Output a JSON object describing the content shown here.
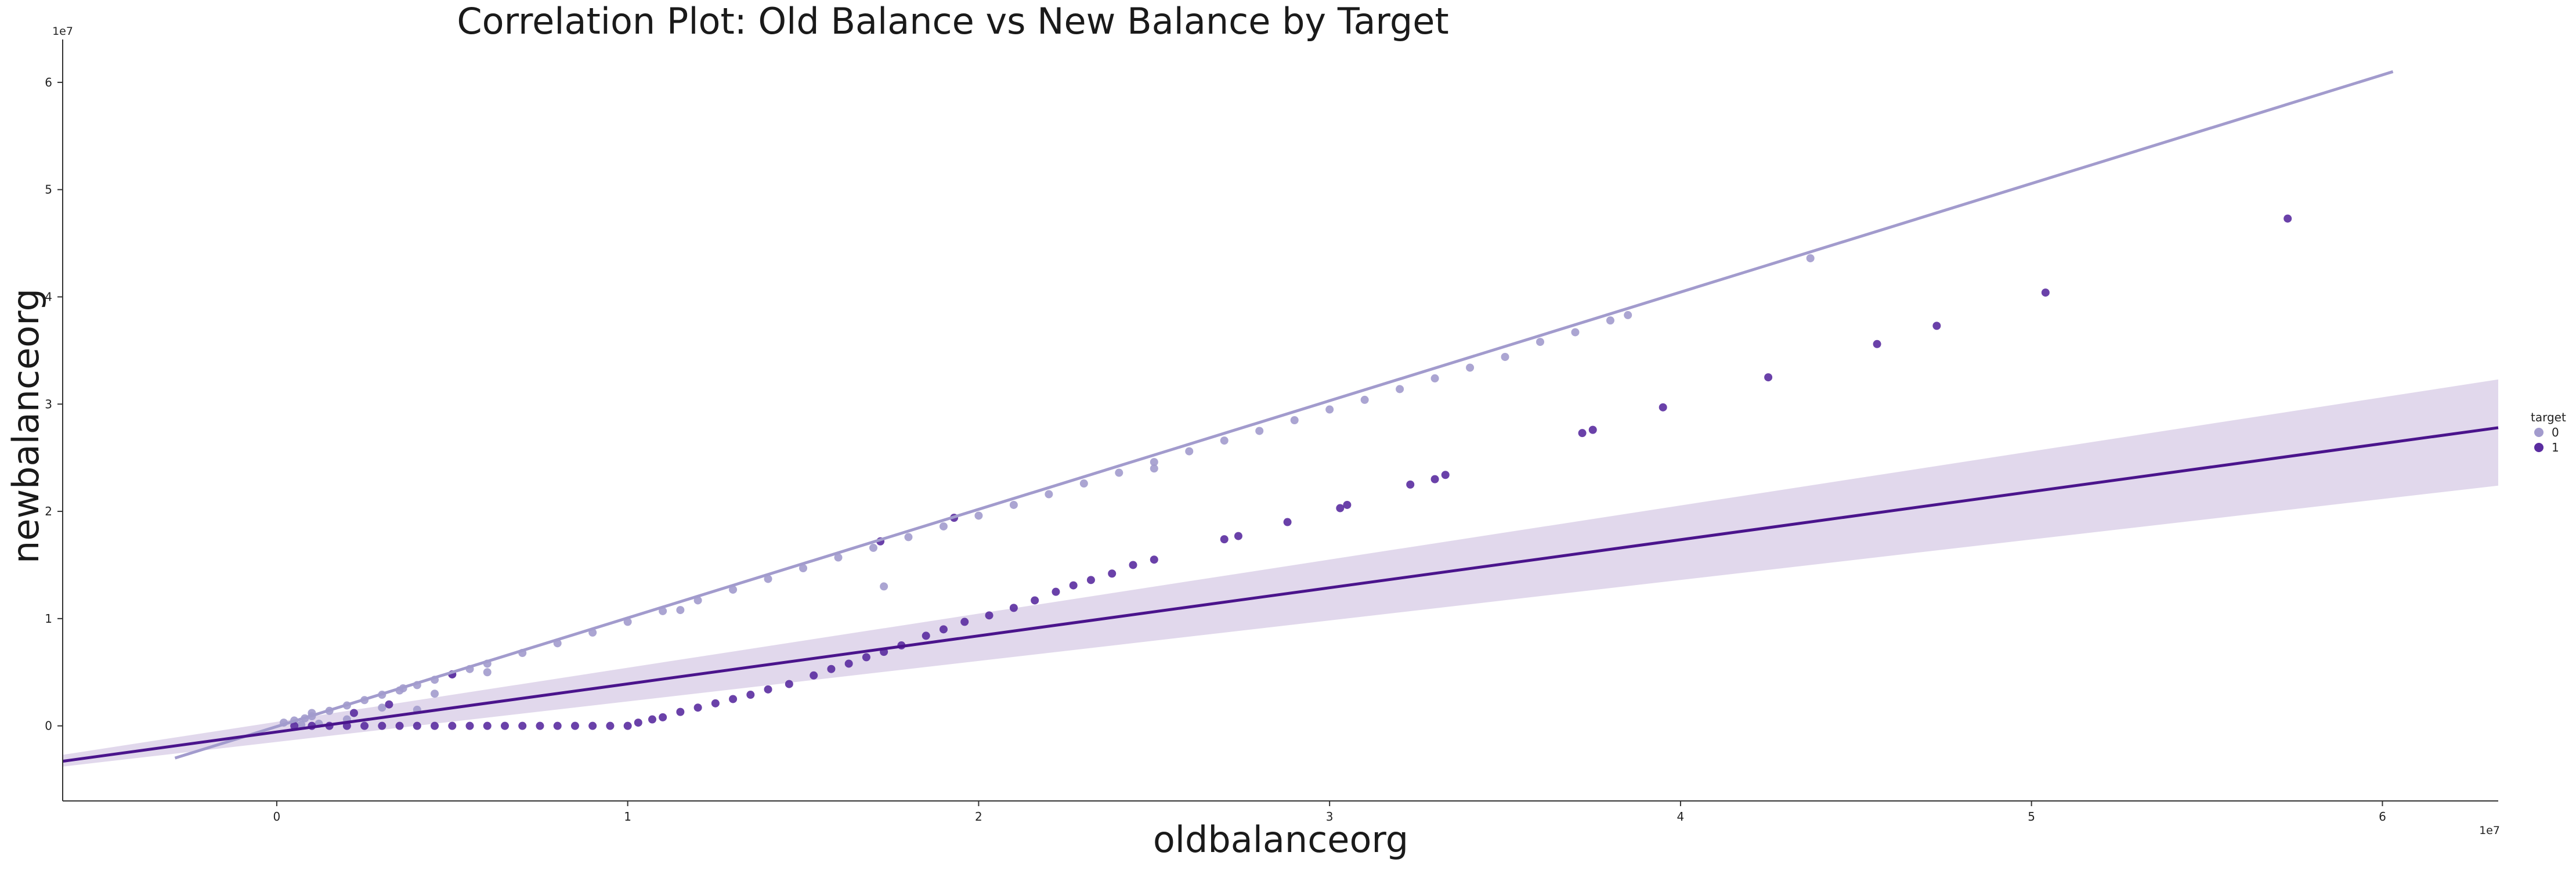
{
  "chart_data": {
    "type": "scatter",
    "title": "Correlation Plot: Old Balance vs New Balance by Target",
    "xlabel": "oldbalanceorg",
    "ylabel": "newbalanceorg",
    "x_offset_label": "1e7",
    "y_offset_label": "1e7",
    "xlim": [
      -6100000,
      63300000
    ],
    "ylim": [
      -7000000,
      64000000
    ],
    "x_ticks": [
      0,
      10000000,
      20000000,
      30000000,
      40000000,
      50000000,
      60000000
    ],
    "x_tick_labels": [
      "0",
      "1",
      "2",
      "3",
      "4",
      "5",
      "6"
    ],
    "y_ticks": [
      0,
      10000000,
      20000000,
      30000000,
      40000000,
      50000000,
      60000000
    ],
    "y_tick_labels": [
      "0",
      "1",
      "2",
      "3",
      "4",
      "5",
      "6"
    ],
    "grid": false,
    "legend": {
      "title": "target",
      "placement": "right"
    },
    "series": [
      {
        "name": "0",
        "color": "#a29bcd",
        "points": [
          [
            200000,
            300000
          ],
          [
            500000,
            500000
          ],
          [
            800000,
            700000
          ],
          [
            1000000,
            900000
          ],
          [
            1500000,
            1400000
          ],
          [
            2000000,
            1900000
          ],
          [
            2500000,
            2400000
          ],
          [
            3000000,
            2900000
          ],
          [
            3500000,
            3300000
          ],
          [
            4000000,
            3800000
          ],
          [
            4500000,
            4300000
          ],
          [
            5000000,
            4800000
          ],
          [
            5500000,
            5300000
          ],
          [
            6000000,
            5800000
          ],
          [
            7000000,
            6800000
          ],
          [
            8000000,
            7700000
          ],
          [
            9000000,
            8700000
          ],
          [
            10000000,
            9700000
          ],
          [
            11000000,
            10700000
          ],
          [
            12000000,
            11700000
          ],
          [
            13000000,
            12700000
          ],
          [
            14000000,
            13700000
          ],
          [
            15000000,
            14700000
          ],
          [
            16000000,
            15700000
          ],
          [
            17000000,
            16600000
          ],
          [
            18000000,
            17600000
          ],
          [
            19000000,
            18600000
          ],
          [
            20000000,
            19600000
          ],
          [
            21000000,
            20600000
          ],
          [
            22000000,
            21600000
          ],
          [
            23000000,
            22600000
          ],
          [
            24000000,
            23600000
          ],
          [
            25000000,
            24600000
          ],
          [
            26000000,
            25600000
          ],
          [
            27000000,
            26600000
          ],
          [
            28000000,
            27500000
          ],
          [
            29000000,
            28500000
          ],
          [
            30000000,
            29500000
          ],
          [
            31000000,
            30400000
          ],
          [
            32000000,
            31400000
          ],
          [
            33000000,
            32400000
          ],
          [
            34000000,
            33400000
          ],
          [
            35000000,
            34400000
          ],
          [
            36000000,
            35800000
          ],
          [
            37000000,
            36700000
          ],
          [
            38000000,
            37800000
          ],
          [
            38500000,
            38300000
          ],
          [
            43700000,
            43600000
          ],
          [
            17300000,
            13000000
          ],
          [
            25000000,
            24000000
          ],
          [
            2000000,
            600000
          ],
          [
            3000000,
            1700000
          ],
          [
            4000000,
            1500000
          ],
          [
            1200000,
            200000
          ],
          [
            6000000,
            5000000
          ],
          [
            3600000,
            3500000
          ],
          [
            11500000,
            10800000
          ],
          [
            4500000,
            3000000
          ],
          [
            1000000,
            1200000
          ],
          [
            700000,
            100000
          ]
        ]
      },
      {
        "name": "1",
        "color": "#5a2ca0",
        "points": [
          [
            500000,
            0
          ],
          [
            1000000,
            0
          ],
          [
            1500000,
            0
          ],
          [
            2000000,
            0
          ],
          [
            2500000,
            0
          ],
          [
            3000000,
            0
          ],
          [
            3500000,
            0
          ],
          [
            4000000,
            0
          ],
          [
            4500000,
            0
          ],
          [
            5000000,
            0
          ],
          [
            5500000,
            0
          ],
          [
            6000000,
            0
          ],
          [
            6500000,
            0
          ],
          [
            7000000,
            0
          ],
          [
            7500000,
            0
          ],
          [
            8000000,
            0
          ],
          [
            8500000,
            0
          ],
          [
            9000000,
            0
          ],
          [
            9500000,
            0
          ],
          [
            10000000,
            0
          ],
          [
            10300000,
            300000
          ],
          [
            10700000,
            600000
          ],
          [
            11000000,
            800000
          ],
          [
            11500000,
            1300000
          ],
          [
            12000000,
            1700000
          ],
          [
            12500000,
            2100000
          ],
          [
            13000000,
            2500000
          ],
          [
            13500000,
            2900000
          ],
          [
            14000000,
            3400000
          ],
          [
            14600000,
            3900000
          ],
          [
            15300000,
            4700000
          ],
          [
            15800000,
            5300000
          ],
          [
            16300000,
            5800000
          ],
          [
            16800000,
            6400000
          ],
          [
            17300000,
            6900000
          ],
          [
            17800000,
            7500000
          ],
          [
            18500000,
            8400000
          ],
          [
            19000000,
            9000000
          ],
          [
            19600000,
            9700000
          ],
          [
            20300000,
            10300000
          ],
          [
            21000000,
            11000000
          ],
          [
            21600000,
            11700000
          ],
          [
            22200000,
            12500000
          ],
          [
            22700000,
            13100000
          ],
          [
            23200000,
            13600000
          ],
          [
            23800000,
            14200000
          ],
          [
            24400000,
            15000000
          ],
          [
            25000000,
            15500000
          ],
          [
            27000000,
            17400000
          ],
          [
            27400000,
            17700000
          ],
          [
            28800000,
            19000000
          ],
          [
            30300000,
            20300000
          ],
          [
            30500000,
            20600000
          ],
          [
            32300000,
            22500000
          ],
          [
            33000000,
            23000000
          ],
          [
            33300000,
            23400000
          ],
          [
            37200000,
            27300000
          ],
          [
            37500000,
            27600000
          ],
          [
            39500000,
            29700000
          ],
          [
            42500000,
            32500000
          ],
          [
            45600000,
            35600000
          ],
          [
            47300000,
            37300000
          ],
          [
            50400000,
            40400000
          ],
          [
            57300000,
            47300000
          ],
          [
            17200000,
            17200000
          ],
          [
            19300000,
            19400000
          ],
          [
            3200000,
            2000000
          ],
          [
            2200000,
            1200000
          ],
          [
            5000000,
            4800000
          ]
        ]
      }
    ],
    "regression_lines": [
      {
        "series": "0",
        "color": "#a29bcd",
        "x": [
          -2900000,
          60300000
        ],
        "y": [
          -3000000,
          61000000
        ]
      },
      {
        "series": "1",
        "color": "#4a148c",
        "x": [
          -6100000,
          63300000
        ],
        "y": [
          -3300000,
          27800000
        ],
        "ci_color": "#c9b8dd",
        "ci": {
          "x": [
            -6100000,
            63300000
          ],
          "lower": [
            -3800000,
            22400000
          ],
          "upper": [
            -2700000,
            32300000
          ]
        }
      }
    ]
  }
}
